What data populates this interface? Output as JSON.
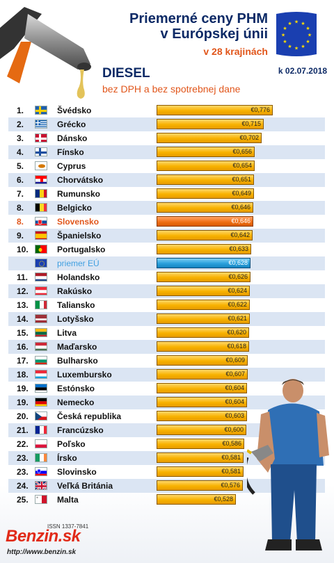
{
  "header": {
    "title_line1": "Priemerné ceny PHM",
    "title_line2": "v Európskej únii",
    "subtitle": "v 28 krajinách",
    "fuel": "DIESEL",
    "date": "k 02.07.2018",
    "note": "bez DPH a bez spotrebnej dane"
  },
  "footer": {
    "issn": "ISSN 1337-7841",
    "logo": "Benzin.sk",
    "url": "http://www.benzin.sk"
  },
  "colors": {
    "default_bar": "#f8b200",
    "highlight_bar": "#f07018",
    "eu_bar": "#2aa0dc",
    "title": "#0d2a66",
    "accent": "#e1561b"
  },
  "chart_data": {
    "type": "bar",
    "orientation": "horizontal",
    "title": "Priemerné ceny PHM v Európskej únii",
    "subtitle": "v 28 krajinách",
    "value_prefix": "€",
    "xlim": [
      0,
      0.79
    ],
    "rows": [
      {
        "rank": "1.",
        "country": "Švédsko",
        "value": 0.776,
        "label": "€0,776",
        "flag": "se"
      },
      {
        "rank": "2.",
        "country": "Grécko",
        "value": 0.715,
        "label": "€0,715",
        "flag": "gr"
      },
      {
        "rank": "3.",
        "country": "Dánsko",
        "value": 0.702,
        "label": "€0,702",
        "flag": "dk"
      },
      {
        "rank": "4.",
        "country": "Fínsko",
        "value": 0.656,
        "label": "€0,656",
        "flag": "fi"
      },
      {
        "rank": "5.",
        "country": "Cyprus",
        "value": 0.654,
        "label": "€0,654",
        "flag": "cy"
      },
      {
        "rank": "6.",
        "country": "Chorvátsko",
        "value": 0.651,
        "label": "€0,651",
        "flag": "hr"
      },
      {
        "rank": "7.",
        "country": "Rumunsko",
        "value": 0.649,
        "label": "€0,649",
        "flag": "ro"
      },
      {
        "rank": "8.",
        "country": "Belgicko",
        "value": 0.646,
        "label": "€0,646",
        "flag": "be"
      },
      {
        "rank": "8.",
        "country": "Slovensko",
        "value": 0.646,
        "label": "€0,646",
        "flag": "sk",
        "highlight": "sk"
      },
      {
        "rank": "9.",
        "country": "Španielsko",
        "value": 0.642,
        "label": "€0,642",
        "flag": "es"
      },
      {
        "rank": "10.",
        "country": "Portugalsko",
        "value": 0.633,
        "label": "€0,633",
        "flag": "pt"
      },
      {
        "rank": "",
        "country": "priemer EÚ",
        "value": 0.628,
        "label": "€0,628",
        "flag": "eu",
        "highlight": "eu"
      },
      {
        "rank": "11.",
        "country": "Holandsko",
        "value": 0.626,
        "label": "€0,626",
        "flag": "nl"
      },
      {
        "rank": "12.",
        "country": "Rakúsko",
        "value": 0.624,
        "label": "€0,624",
        "flag": "at"
      },
      {
        "rank": "13.",
        "country": "Taliansko",
        "value": 0.622,
        "label": "€0,622",
        "flag": "it"
      },
      {
        "rank": "14.",
        "country": "Lotyšsko",
        "value": 0.621,
        "label": "€0,621",
        "flag": "lv"
      },
      {
        "rank": "15.",
        "country": "Litva",
        "value": 0.62,
        "label": "€0,620",
        "flag": "lt"
      },
      {
        "rank": "16.",
        "country": "Maďarsko",
        "value": 0.618,
        "label": "€0,618",
        "flag": "hu"
      },
      {
        "rank": "17.",
        "country": "Bulharsko",
        "value": 0.609,
        "label": "€0,609",
        "flag": "bg"
      },
      {
        "rank": "18.",
        "country": "Luxembursko",
        "value": 0.607,
        "label": "€0,607",
        "flag": "lu"
      },
      {
        "rank": "19.",
        "country": "Estónsko",
        "value": 0.604,
        "label": "€0,604",
        "flag": "ee"
      },
      {
        "rank": "19.",
        "country": "Nemecko",
        "value": 0.604,
        "label": "€0,604",
        "flag": "de"
      },
      {
        "rank": "20.",
        "country": "Česká republika",
        "value": 0.603,
        "label": "€0,603",
        "flag": "cz"
      },
      {
        "rank": "21.",
        "country": "Francúzsko",
        "value": 0.6,
        "label": "€0,600",
        "flag": "fr"
      },
      {
        "rank": "22.",
        "country": "Poľsko",
        "value": 0.586,
        "label": "€0,586",
        "flag": "pl"
      },
      {
        "rank": "23.",
        "country": "Írsko",
        "value": 0.581,
        "label": "€0,581",
        "flag": "ie"
      },
      {
        "rank": "23.",
        "country": "Slovinsko",
        "value": 0.581,
        "label": "€0,581",
        "flag": "si"
      },
      {
        "rank": "24.",
        "country": "Veľká Británia",
        "value": 0.576,
        "label": "€0,576",
        "flag": "gb"
      },
      {
        "rank": "25.",
        "country": "Malta",
        "value": 0.528,
        "label": "€0,528",
        "flag": "mt"
      }
    ]
  }
}
